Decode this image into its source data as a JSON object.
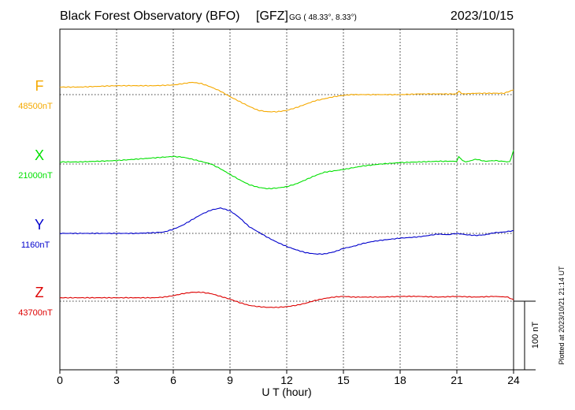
{
  "header": {
    "station": "Black Forest Observatory (BFO)",
    "institute": "[GFZ]",
    "coords": "GG ( 48.33°,   8.33°)",
    "date": "2023/10/15"
  },
  "footer": {
    "plotted": "Plotted at 2023/10/21 21:14 UT",
    "scale_label": "100 nT"
  },
  "chart_data": {
    "type": "line",
    "xlabel": "U T (hour)",
    "xlim": [
      0,
      24
    ],
    "xticks": [
      0,
      3,
      6,
      9,
      12,
      15,
      18,
      21,
      24
    ],
    "scale_nT": 100,
    "grid": true,
    "series": [
      {
        "name": "F",
        "baseline_label": "48500nT",
        "baseline_nT": 48500,
        "color": "#f5a900",
        "x": [
          0,
          1,
          2,
          3,
          4,
          5,
          6,
          6.5,
          7,
          7.5,
          8,
          8.5,
          9,
          9.5,
          10,
          10.5,
          11,
          11.5,
          12,
          12.5,
          13,
          13.5,
          14,
          14.5,
          15,
          15.5,
          16,
          17,
          18,
          19,
          20,
          21,
          21.1,
          21.3,
          22,
          23,
          23.5,
          24
        ],
        "values": [
          48511,
          48511,
          48512,
          48513,
          48513,
          48513,
          48514,
          48516,
          48518,
          48516,
          48511,
          48505,
          48497,
          48490,
          48483,
          48477,
          48475,
          48475,
          48477,
          48481,
          48486,
          48491,
          48494,
          48497,
          48499,
          48500,
          48500,
          48500,
          48500,
          48501,
          48501,
          48501,
          48505,
          48501,
          48502,
          48502,
          48502,
          48507
        ]
      },
      {
        "name": "X",
        "baseline_label": "21000nT",
        "baseline_nT": 21000,
        "color": "#00e000",
        "x": [
          0,
          1,
          2,
          3,
          4,
          5,
          5.5,
          6,
          6.5,
          7,
          8,
          8.5,
          9,
          9.5,
          10,
          10.5,
          11,
          11.5,
          12,
          12.5,
          13,
          13.5,
          14,
          15,
          16,
          17,
          18,
          19,
          20,
          21,
          21.1,
          21.3,
          21.5,
          22,
          22.5,
          23,
          23.8,
          24
        ],
        "values": [
          21003,
          21003,
          21004,
          21005,
          21007,
          21009,
          21010,
          21011,
          21010,
          21007,
          21000,
          20993,
          20985,
          20977,
          20970,
          20966,
          20964,
          20965,
          20967,
          20971,
          20977,
          20983,
          20988,
          20992,
          20997,
          21000,
          21002,
          21003,
          21004,
          21004,
          21011,
          21005,
          21003,
          21007,
          21004,
          21005,
          21003,
          21020
        ]
      },
      {
        "name": "Y",
        "baseline_label": "1160nT",
        "baseline_nT": 1160,
        "color": "#0000cc",
        "x": [
          0,
          1,
          2,
          3,
          4,
          5,
          5.5,
          6,
          6.5,
          7,
          7.5,
          8,
          8.5,
          9,
          9.5,
          10,
          10.5,
          11,
          11.5,
          12,
          12.5,
          13,
          13.5,
          14,
          14.5,
          15,
          15.5,
          16,
          16.5,
          17,
          18,
          18.5,
          19,
          19.5,
          20,
          20.5,
          21,
          21.5,
          22,
          22.5,
          23,
          23.5,
          24
        ],
        "values": [
          1160,
          1160,
          1160,
          1160,
          1160,
          1161,
          1162,
          1166,
          1172,
          1180,
          1188,
          1194,
          1197,
          1193,
          1183,
          1170,
          1162,
          1154,
          1147,
          1141,
          1136,
          1132,
          1130,
          1130,
          1133,
          1138,
          1141,
          1145,
          1148,
          1150,
          1153,
          1154,
          1155,
          1157,
          1159,
          1158,
          1160,
          1158,
          1157,
          1158,
          1161,
          1162,
          1164
        ]
      },
      {
        "name": "Z",
        "baseline_label": "43700nT",
        "baseline_nT": 43700,
        "color": "#dd0000",
        "x": [
          0,
          1,
          2,
          3,
          4,
          5,
          5.5,
          6,
          6.5,
          7,
          7.5,
          8,
          8.5,
          9,
          9.5,
          10,
          10.5,
          11,
          11.5,
          12,
          12.5,
          13,
          13.5,
          14,
          14.5,
          15,
          15.5,
          16,
          17,
          18,
          19,
          20,
          21,
          22,
          23,
          23.7,
          24
        ],
        "values": [
          43705,
          43705,
          43705,
          43705,
          43705,
          43705,
          43706,
          43708,
          43711,
          43713,
          43713,
          43711,
          43707,
          43703,
          43698,
          43694,
          43692,
          43691,
          43691,
          43692,
          43694,
          43697,
          43701,
          43704,
          43706,
          43707,
          43706,
          43706,
          43706,
          43707,
          43707,
          43706,
          43707,
          43706,
          43707,
          43706,
          43702
        ]
      }
    ]
  }
}
